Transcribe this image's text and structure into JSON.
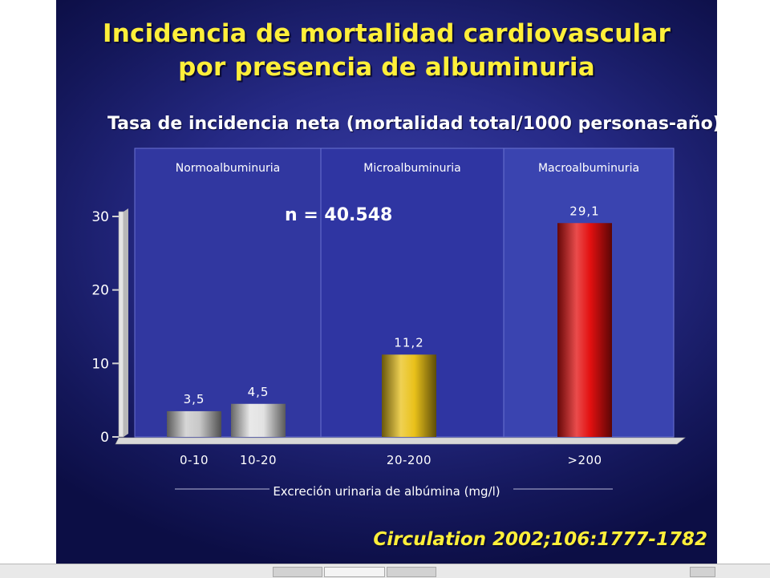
{
  "slide": {
    "title_line1": "Incidencia de mortalidad cardiovascular",
    "title_line2": "por presencia de albuminuria",
    "subtitle": "Tasa de incidencia neta (mortalidad total/1000 personas-año)",
    "annotation": "n = 40.548",
    "citation": "Circulation 2002;106:1777-1782"
  },
  "chart_data": {
    "type": "bar",
    "title": "Tasa de incidencia neta (mortalidad total/1000 personas-año)",
    "xlabel": "Excreción urinaria de albúmina (mg/l)",
    "ylabel": "",
    "ylim": [
      0,
      30
    ],
    "yticks": [
      0,
      10,
      20,
      30
    ],
    "categories": [
      "0-10",
      "10-20",
      "20-200",
      ">200"
    ],
    "values": [
      3.5,
      4.5,
      11.2,
      29.1
    ],
    "value_labels": [
      "3,5",
      "4,5",
      "11,2",
      "29,1"
    ],
    "bar_colors": [
      "#c8c8c8",
      "#e2e2e2",
      "#e9c11a",
      "#e31010"
    ],
    "groups": [
      {
        "name": "Normoalbuminuria",
        "categories": [
          "0-10",
          "10-20"
        ]
      },
      {
        "name": "Microalbuminuria",
        "categories": [
          "20-200"
        ]
      },
      {
        "name": "Macroalbuminuria",
        "categories": [
          ">200"
        ]
      }
    ],
    "grid": false
  }
}
